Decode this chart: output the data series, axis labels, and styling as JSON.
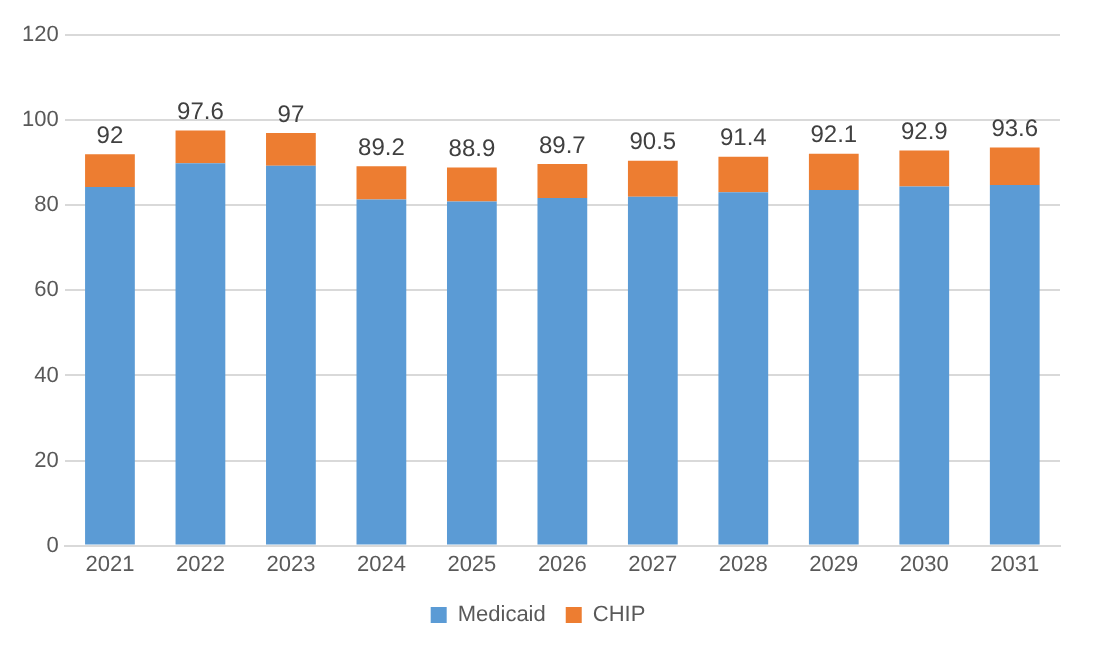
{
  "chart_data": {
    "type": "bar",
    "stacked": true,
    "categories": [
      "2021",
      "2022",
      "2023",
      "2024",
      "2025",
      "2026",
      "2027",
      "2028",
      "2029",
      "2030",
      "2031"
    ],
    "series": [
      {
        "name": "Medicaid",
        "color": "#5b9bd5",
        "values": [
          84.3,
          89.9,
          89.3,
          81.4,
          80.9,
          81.7,
          82.0,
          83.1,
          83.6,
          84.4,
          84.8
        ]
      },
      {
        "name": "CHIP",
        "color": "#ed7d31",
        "values": [
          7.7,
          7.7,
          7.7,
          7.8,
          8.0,
          8.0,
          8.5,
          8.3,
          8.5,
          8.5,
          8.8
        ]
      }
    ],
    "totals": [
      "92",
      "97.6",
      "97",
      "89.2",
      "88.9",
      "89.7",
      "90.5",
      "91.4",
      "92.1",
      "92.9",
      "93.6"
    ],
    "ylim": [
      0,
      120
    ],
    "yticks": [
      0,
      20,
      40,
      60,
      80,
      100,
      120
    ],
    "grid": "y",
    "legend": "bottom"
  }
}
